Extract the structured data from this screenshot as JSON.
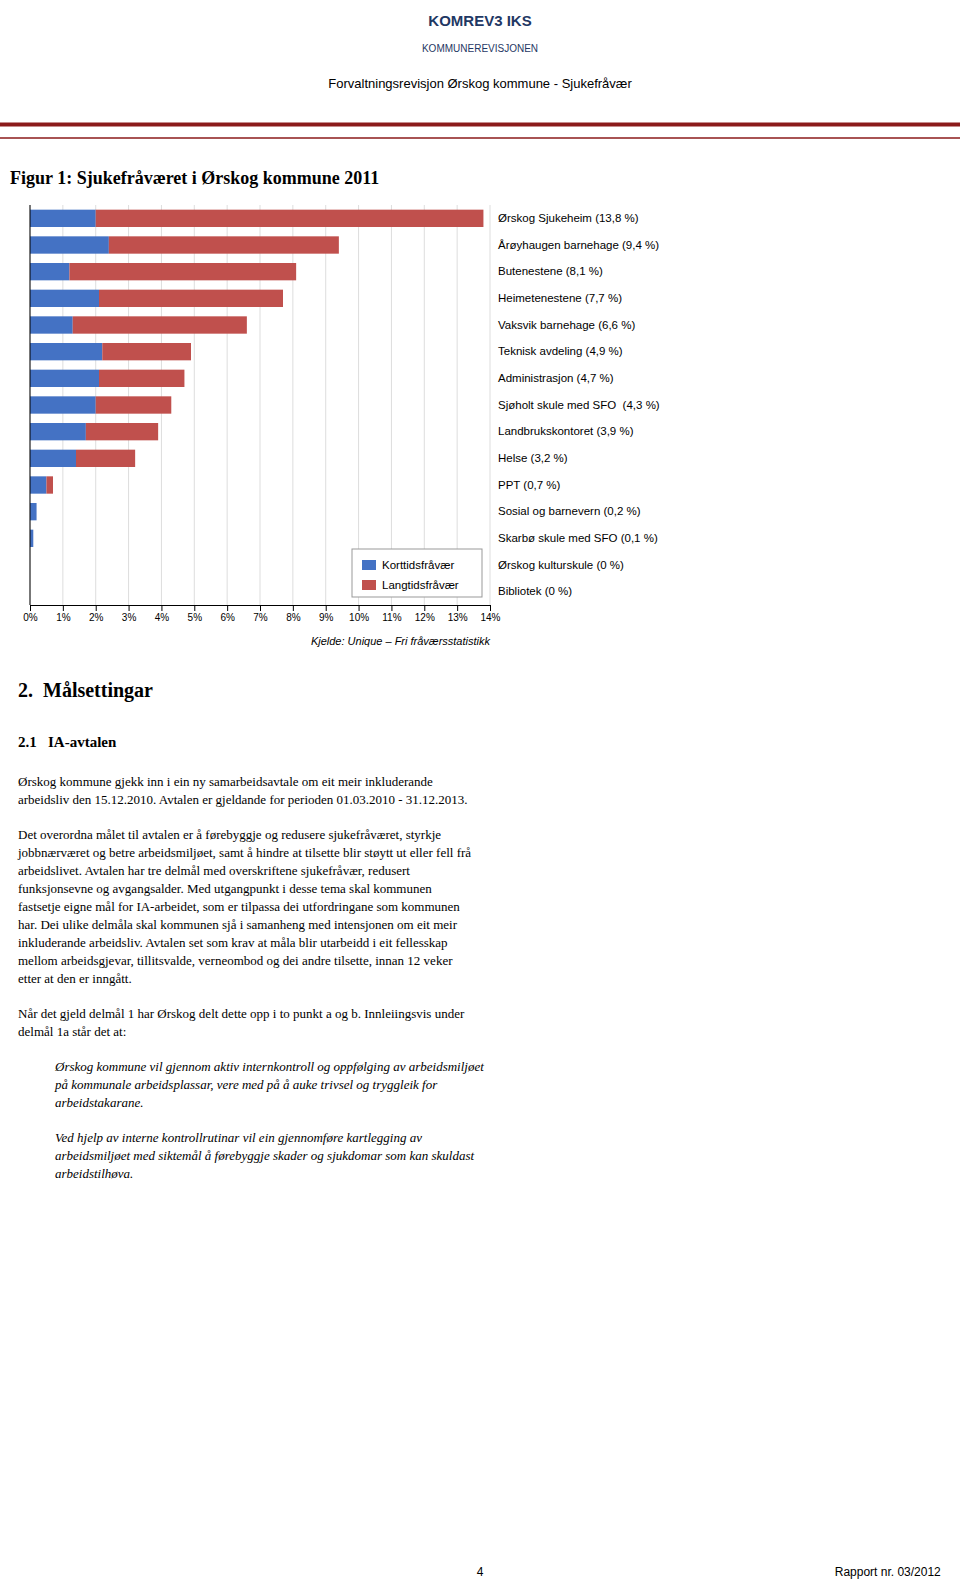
{
  "header": [
    "KOMREV3 IKS",
    "KOMMUNEREVISJONEN",
    "Forvaltningsrevisjon Ørskog kommune - Sjukefråvær"
  ],
  "header_color": "#1F3864",
  "separator_color": "#8B1A1A",
  "chart_data": {
    "type": "bar",
    "title": "Figur 1: Sjukefråværet i Ørskog kommune 2011",
    "orientation": "horizontal",
    "stacked": true,
    "categories": [
      "Bibliotek (0 %)",
      "Ørskog kulturskule (0 %)",
      "Skarbø skule med SFO (0,1 %)",
      "Sosial og barnevern (0,2 %)",
      "PPT (0,7 %)",
      "Helse (3,2 %)",
      "Landbrukskontoret (3,9 %)",
      "Sjøholt skule med SFO  (4,3 %)",
      "Administrasjon (4,7 %)",
      "Teknisk avdeling (4,9 %)",
      "Vaksvik barnehage (6,6 %)",
      "Heimetenestene (7,7 %)",
      "Butenestene (8,1 %)",
      "Årøyhaugen barnehage (9,4 %)",
      "Ørskog Sjukeheim (13,8 %)"
    ],
    "series": [
      {
        "name": "Korttidsfråvær",
        "color": "#4472C4",
        "values": [
          0.0,
          0.0,
          0.1,
          0.2,
          0.5,
          1.4,
          1.7,
          2.0,
          2.1,
          2.2,
          1.3,
          2.1,
          1.2,
          2.4,
          2.0
        ]
      },
      {
        "name": "Langtidsfråvær",
        "color": "#C0504D",
        "values": [
          0.0,
          0.0,
          0.0,
          0.0,
          0.2,
          1.8,
          2.2,
          2.3,
          2.6,
          2.7,
          5.3,
          5.6,
          6.9,
          7.0,
          11.8
        ]
      }
    ],
    "xlim": [
      0,
      14
    ],
    "xticks": [
      {
        "value": 0,
        "label": "0%"
      },
      {
        "value": 1,
        "label": "1%"
      },
      {
        "value": 2,
        "label": "2%"
      },
      {
        "value": 3,
        "label": "3%"
      },
      {
        "value": 4,
        "label": "4%"
      },
      {
        "value": 5,
        "label": "5%"
      },
      {
        "value": 6,
        "label": "6%"
      },
      {
        "value": 7,
        "label": "7%"
      },
      {
        "value": 8,
        "label": "8%"
      },
      {
        "value": 9,
        "label": "9%"
      },
      {
        "value": 10,
        "label": "10%"
      },
      {
        "value": 11,
        "label": "11%"
      },
      {
        "value": 12,
        "label": "12%"
      },
      {
        "value": 13,
        "label": "13%"
      },
      {
        "value": 14,
        "label": "14%"
      }
    ],
    "grid": true,
    "legend": "lower right",
    "annotations": [
      "Kjelde: Unique – Fri fråværsstatistikk"
    ]
  },
  "text_blocks": [
    {
      "kind": "h1",
      "text": "2.  Målsettingar"
    },
    {
      "kind": "h2",
      "text": "2.1   IA-avtalen"
    },
    {
      "kind": "p",
      "text": "Ørskog kommune gjekk inn i ein ny samarbeidsavtale om eit meir inkluderande\narbeidsliv den 15.12.2010. Avtalen er gjeldande for perioden 01.03.2010 - 31.12.2013."
    },
    {
      "kind": "p",
      "text": "Det overordna målet til avtalen er å førebyggje og redusere sjukefråværet, styrkje\njobbnærværet og betre arbeidsmiljøet, samt å hindre at tilsette blir støytt ut eller fell frå\narbeidslivet. Avtalen har tre delmål med overskriftene sjukefråvær, redusert\nfunksjonsevne og avgangsalder. Med utgangpunkt i desse tema skal kommunen\nfastsetje eigne mål for IA-arbeidet, som er tilpassa dei utfordringane som kommunen\nhar. Dei ulike delmåla skal kommunen sjå i samanheng med intensjonen om eit meir\ninkluderande arbeidsliv. Avtalen set som krav at måla blir utarbeidd i eit fellesskap\nmellom arbeidsgjevar, tillitsvalde, verneombod og dei andre tilsette, innan 12 veker\netter at den er inngått."
    },
    {
      "kind": "p",
      "text": "Når det gjeld delmål 1 har Ørskog delt dette opp i to punkt a og b. Innleiingsvis under\ndelmål 1a står det at:"
    },
    {
      "kind": "quote",
      "text": "Ørskog kommune vil gjennom aktiv internkontroll og oppfølging av arbeidsmiljøet\npå kommunale arbeidsplassar, vere med på å auke trivsel og tryggleik for\narbeidstakarane."
    },
    {
      "kind": "quote",
      "text": "Ved hjelp av interne kontrollrutinar vil ein gjennomføre kartlegging av\narbeidsmiljøet med siktemål å førebyggje skader og sjukdomar som kan skuldast\narbeidstilhøva."
    }
  ],
  "footer": {
    "page": "4",
    "report": "Rapport nr. 03/2012"
  }
}
